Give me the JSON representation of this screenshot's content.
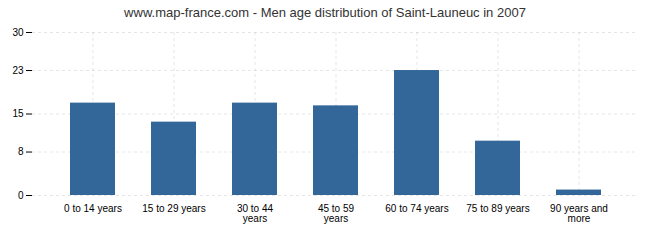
{
  "chart_data": {
    "type": "bar",
    "title": "www.map-france.com - Men age distribution of Saint-Launeuc in 2007",
    "categories": [
      "0 to 14 years",
      "15 to 29 years",
      "30 to 44 years",
      "45 to 59 years",
      "60 to 74 years",
      "75 to 89 years",
      "90 years and more"
    ],
    "values": [
      17,
      13.5,
      17,
      16.5,
      23,
      10,
      1
    ],
    "color": "#336699",
    "ylim": [
      0,
      30
    ],
    "yticks": [
      0,
      8,
      15,
      23,
      30
    ],
    "grid": true
  }
}
